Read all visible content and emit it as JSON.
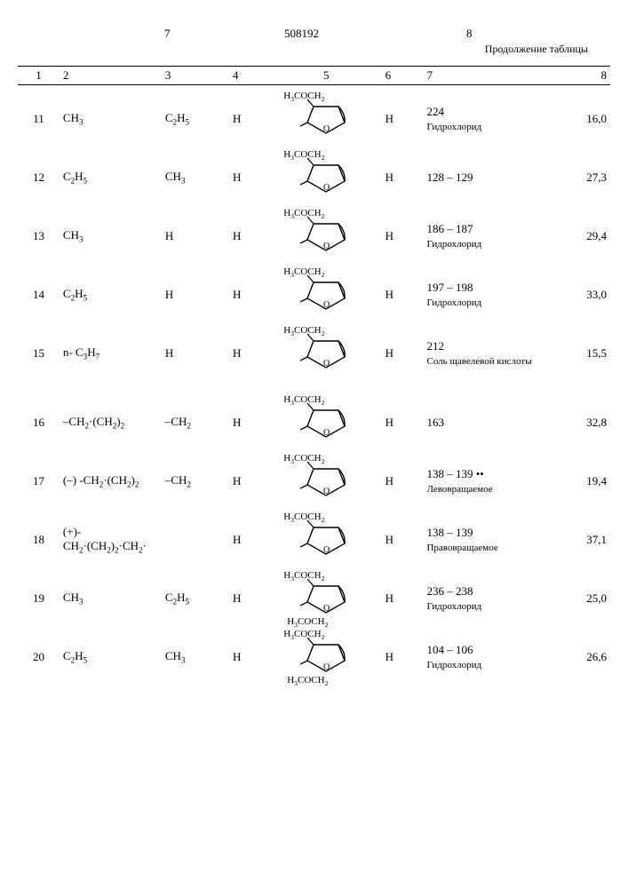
{
  "header": {
    "page_left": "7",
    "page_right": "8",
    "doc_number": "508192",
    "continuation": "Продолжение таблицы"
  },
  "columns": {
    "c1": "1",
    "c2": "2",
    "c3": "3",
    "c4": "4",
    "c5": "5",
    "c6": "6",
    "c7": "7",
    "c8": "8"
  },
  "furan": {
    "top_label": "H₃COCH₂",
    "bot_label": "H₃COCH₂"
  },
  "rows": [
    {
      "n": "11",
      "r1": "CH₃",
      "r2": "C₂H₅",
      "r3": "H",
      "r6": "H",
      "mp": "224",
      "salt": "Гидрохлорид",
      "v8": "16,0",
      "variant": "top"
    },
    {
      "n": "12",
      "r1": "C₂H₅",
      "r2": "CH₃",
      "r3": "H",
      "r6": "H",
      "mp": "128 – 129",
      "salt": "",
      "v8": "27,3",
      "variant": "top"
    },
    {
      "n": "13",
      "r1": "CH₃",
      "r2": "H",
      "r3": "H",
      "r6": "H",
      "mp": "186 – 187",
      "salt": "Гидрохлорид",
      "v8": "29,4",
      "variant": "top"
    },
    {
      "n": "14",
      "r1": "C₂H₅",
      "r2": "H",
      "r3": "H",
      "r6": "H",
      "mp": "197 – 198",
      "salt": "Гидрохлорид",
      "v8": "33,0",
      "variant": "top"
    },
    {
      "n": "15",
      "r1": "n- C₃H₇",
      "r2": "H",
      "r3": "H",
      "r6": "H",
      "mp": "212",
      "salt": "Соль щавелевой кислоты",
      "v8": "15,5",
      "variant": "top",
      "tall": true
    },
    {
      "n": "16",
      "r1": "–CH₂·(CH₂)₂",
      "r2": "–CH₂",
      "r3": "H",
      "r6": "H",
      "mp": "163",
      "salt": "",
      "v8": "32,8",
      "variant": "top"
    },
    {
      "n": "17",
      "r1": "(–) -CH₂·(CH₂)₂",
      "r2": "–CH₂",
      "r3": "H",
      "r6": "H",
      "mp": "138 – 139   ••",
      "salt": "Левовращаемое",
      "v8": "19,4",
      "variant": "top"
    },
    {
      "n": "18",
      "r1": "(+)-CH₂·(CH₂)₂·CH₂·",
      "r2": "",
      "r3": "H",
      "r6": "H",
      "mp": "138 – 139",
      "salt": "Правовращаемое",
      "v8": "37,1",
      "variant": "top"
    },
    {
      "n": "19",
      "r1": "CH₃",
      "r2": "C₂H₅",
      "r3": "H",
      "r6": "H",
      "mp": "236 – 238",
      "salt": "Гидрохлорид",
      "v8": "25,0",
      "variant": "bottom"
    },
    {
      "n": "20",
      "r1": "C₂H₅",
      "r2": "CH₃",
      "r3": "H",
      "r6": "H",
      "mp": "104 – 106",
      "salt": "Гидрохлорид",
      "v8": "26,6",
      "variant": "bottom"
    }
  ]
}
